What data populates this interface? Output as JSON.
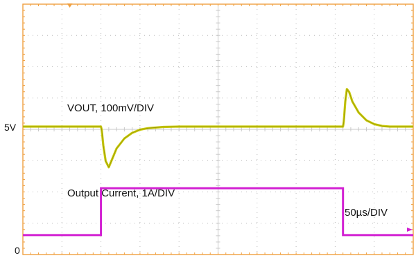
{
  "chart_data": {
    "type": "line",
    "title": "",
    "channels": {
      "ch1_label": "VOUT, 100mV/DIV",
      "ch2_label": "Output Current, 1A/DIV",
      "timebase_label": "50µs/DIV"
    },
    "y_markers": {
      "ch1_ref": "5V",
      "ch2_ref": "0"
    },
    "grid": {
      "h_divs": 10,
      "v_divs": 8,
      "on": true
    },
    "x_unit": "us",
    "xlim": [
      0,
      500
    ],
    "series": [
      {
        "color": "#c9c900",
        "unit": "mV deviation from 5V",
        "x": [
          0,
          20,
          100,
          101,
          103,
          106,
          110,
          115,
          120,
          130,
          140,
          150,
          160,
          180,
          200,
          300,
          410,
          411,
          413,
          415,
          418,
          422,
          430,
          440,
          450,
          460,
          470,
          500
        ],
        "y": [
          0,
          0,
          0,
          -10,
          -60,
          -110,
          -130,
          -100,
          -70,
          -38,
          -20,
          -10,
          -5,
          -1,
          0,
          0,
          0,
          15,
          80,
          120,
          110,
          80,
          45,
          20,
          8,
          2,
          0,
          0
        ]
      },
      {
        "color": "#d21fd2",
        "unit": "A",
        "x": [
          0,
          100,
          100.01,
          410,
          410.01,
          500
        ],
        "y": [
          0.2,
          0.2,
          1.7,
          1.7,
          0.2,
          0.2
        ]
      }
    ]
  },
  "colors": {
    "frame": "#f0a040",
    "grid": "#b8b8b8",
    "ch1": "#c9c900",
    "ch2": "#d21fd2"
  }
}
